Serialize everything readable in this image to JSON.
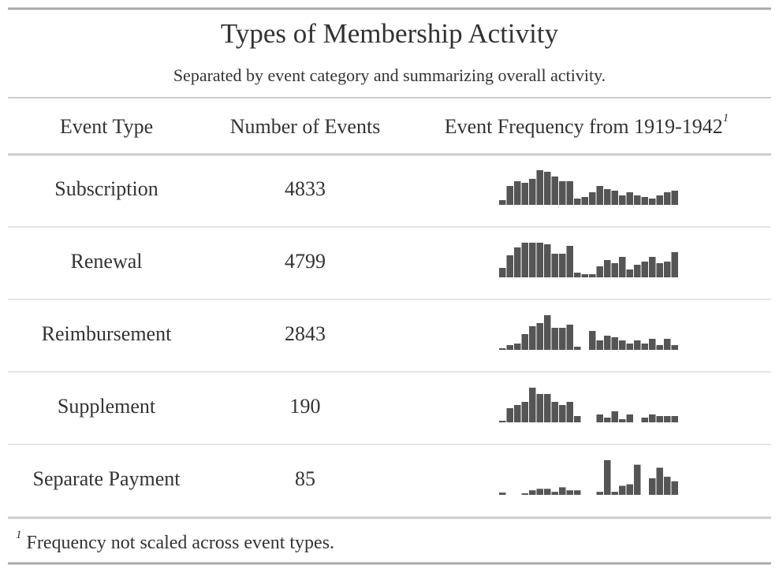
{
  "header": {
    "title": "Types of Membership Activity",
    "subtitle": "Separated by event category and summarizing overall activity."
  },
  "columns": [
    {
      "label": "Event Type"
    },
    {
      "label": "Number of Events"
    },
    {
      "label": "Event Frequency from 1919-1942",
      "note": "1"
    }
  ],
  "bar_color": "#555555",
  "rows": [
    {
      "event_type": "Subscription",
      "count": 4833,
      "frequency": [
        6,
        24,
        30,
        28,
        33,
        44,
        42,
        36,
        30,
        30,
        8,
        10,
        16,
        24,
        20,
        18,
        12,
        16,
        12,
        10,
        8,
        12,
        16,
        18
      ]
    },
    {
      "event_type": "Renewal",
      "count": 4799,
      "frequency": [
        12,
        28,
        38,
        44,
        44,
        44,
        42,
        30,
        30,
        40,
        6,
        4,
        4,
        14,
        22,
        18,
        26,
        10,
        16,
        20,
        26,
        18,
        20,
        32
      ]
    },
    {
      "event_type": "Reimbursement",
      "count": 2843,
      "frequency": [
        2,
        6,
        8,
        20,
        30,
        34,
        44,
        28,
        28,
        32,
        4,
        0,
        24,
        12,
        18,
        16,
        12,
        8,
        12,
        8,
        14,
        6,
        14,
        6
      ]
    },
    {
      "event_type": "Supplement",
      "count": 190,
      "frequency": [
        2,
        18,
        22,
        26,
        44,
        36,
        36,
        26,
        22,
        26,
        8,
        0,
        0,
        10,
        6,
        14,
        4,
        10,
        0,
        6,
        10,
        8,
        8,
        8
      ]
    },
    {
      "event_type": "Separate Payment",
      "count": 85,
      "frequency": [
        3,
        0,
        0,
        2,
        6,
        8,
        8,
        4,
        10,
        6,
        6,
        0,
        0,
        4,
        46,
        4,
        12,
        14,
        40,
        0,
        22,
        36,
        24,
        18
      ]
    }
  ],
  "footnote": {
    "marker": "1",
    "text": "Frequency not scaled across event types."
  }
}
